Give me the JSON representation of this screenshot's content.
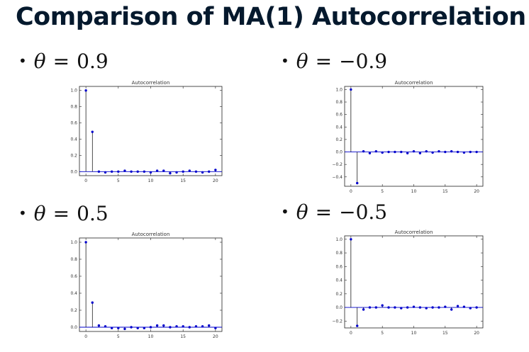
{
  "title": "Comparison of MA(1) Autocorrelation",
  "bullets": [
    {
      "symbol": "θ",
      "operator": "=",
      "value": "0.9"
    },
    {
      "symbol": "θ",
      "operator": "=",
      "value": "−0.9"
    },
    {
      "symbol": "θ",
      "operator": "=",
      "value": "0.5"
    },
    {
      "symbol": "θ",
      "operator": "=",
      "value": "−0.5"
    }
  ],
  "colors": {
    "markers": "#0000cc",
    "stems": "#000000",
    "zero_line": "#0000cc",
    "title_text": "#05192d"
  },
  "chart_data": [
    {
      "type": "stem",
      "title": "Autocorrelation",
      "x": [
        0,
        1,
        2,
        3,
        4,
        5,
        6,
        7,
        8,
        9,
        10,
        11,
        12,
        13,
        14,
        15,
        16,
        17,
        18,
        19,
        20
      ],
      "values": [
        1.0,
        0.49,
        0.0,
        -0.01,
        0.0,
        0.0,
        0.01,
        0.0,
        0.0,
        0.0,
        -0.01,
        0.01,
        0.01,
        -0.02,
        -0.01,
        0.0,
        0.01,
        0.0,
        -0.01,
        0.0,
        0.02
      ],
      "xlim": [
        -1,
        21
      ],
      "ylim": [
        -0.05,
        1.05
      ],
      "xticks": [
        0,
        5,
        10,
        15,
        20
      ],
      "xtick_labels": [
        "0",
        "5",
        "10",
        "15",
        "20"
      ],
      "yticks": [
        0,
        0.2,
        0.4,
        0.6,
        0.8,
        1.0
      ],
      "ytick_labels": [
        "0.0",
        "0.2",
        "0.4",
        "0.6",
        "0.8",
        "1.0"
      ],
      "grid": false
    },
    {
      "type": "stem",
      "title": "Autocorrelation",
      "x": [
        0,
        1,
        2,
        3,
        4,
        5,
        6,
        7,
        8,
        9,
        10,
        11,
        12,
        13,
        14,
        15,
        16,
        17,
        18,
        19,
        20
      ],
      "values": [
        1.0,
        -0.5,
        0.01,
        -0.02,
        0.01,
        -0.01,
        0.0,
        0.0,
        0.0,
        -0.02,
        0.01,
        -0.02,
        0.01,
        -0.01,
        0.01,
        0.0,
        0.01,
        0.0,
        -0.01,
        0.0,
        0.0
      ],
      "xlim": [
        -1,
        21
      ],
      "ylim": [
        -0.55,
        1.05
      ],
      "xticks": [
        0,
        5,
        10,
        15,
        20
      ],
      "xtick_labels": [
        "0",
        "5",
        "10",
        "15",
        "20"
      ],
      "yticks": [
        -0.4,
        -0.2,
        0,
        0.2,
        0.4,
        0.6,
        0.8,
        1.0
      ],
      "ytick_labels": [
        "−0.4",
        "−0.2",
        "0.0",
        "0.2",
        "0.4",
        "0.6",
        "0.8",
        "1.0"
      ],
      "grid": false
    },
    {
      "type": "stem",
      "title": "Autocorrelation",
      "x": [
        0,
        1,
        2,
        3,
        4,
        5,
        6,
        7,
        8,
        9,
        10,
        11,
        12,
        13,
        14,
        15,
        16,
        17,
        18,
        19,
        20
      ],
      "values": [
        1.0,
        0.29,
        0.02,
        0.01,
        -0.01,
        -0.01,
        -0.02,
        0.0,
        -0.01,
        -0.01,
        0.0,
        0.02,
        0.02,
        0.0,
        0.01,
        0.01,
        0.0,
        0.01,
        0.01,
        0.02,
        -0.01
      ],
      "xlim": [
        -1,
        21
      ],
      "ylim": [
        -0.05,
        1.05
      ],
      "xticks": [
        0,
        5,
        10,
        15,
        20
      ],
      "xtick_labels": [
        "0",
        "5",
        "10",
        "15",
        "20"
      ],
      "yticks": [
        0,
        0.2,
        0.4,
        0.6,
        0.8,
        1.0
      ],
      "ytick_labels": [
        "0.0",
        "0.2",
        "0.4",
        "0.6",
        "0.8",
        "1.0"
      ],
      "grid": false
    },
    {
      "type": "stem",
      "title": "Autocorrelation",
      "x": [
        0,
        1,
        2,
        3,
        4,
        5,
        6,
        7,
        8,
        9,
        10,
        11,
        12,
        13,
        14,
        15,
        16,
        17,
        18,
        19,
        20
      ],
      "values": [
        1.0,
        -0.27,
        -0.03,
        0.0,
        0.0,
        0.03,
        0.0,
        0.0,
        -0.01,
        0.0,
        0.01,
        0.0,
        -0.01,
        0.0,
        0.0,
        0.01,
        -0.03,
        0.02,
        0.01,
        -0.01,
        0.0
      ],
      "xlim": [
        -1,
        21
      ],
      "ylim": [
        -0.3,
        1.05
      ],
      "xticks": [
        0,
        5,
        10,
        15,
        20
      ],
      "xtick_labels": [
        "0",
        "5",
        "10",
        "15",
        "20"
      ],
      "yticks": [
        -0.2,
        0,
        0.2,
        0.4,
        0.6,
        0.8,
        1.0
      ],
      "ytick_labels": [
        "−0.2",
        "0.0",
        "0.2",
        "0.4",
        "0.6",
        "0.8",
        "1.0"
      ],
      "grid": false
    }
  ]
}
